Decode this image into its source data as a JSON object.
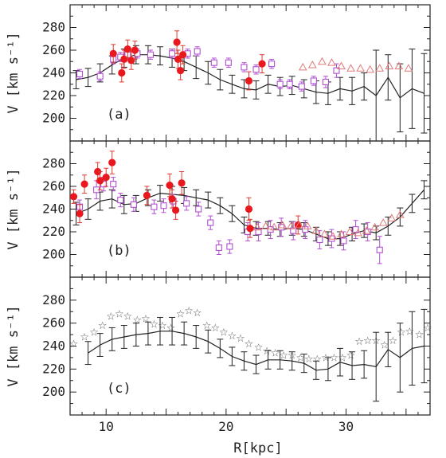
{
  "chart_data": [
    {
      "type": "scatter",
      "panel_label": "(a)",
      "ylabel": "V [km s⁻¹]",
      "xlim": [
        7,
        37
      ],
      "ylim": [
        180,
        300
      ],
      "yticks": [
        200,
        220,
        240,
        260,
        280
      ],
      "series": [
        {
          "marker": "line-with-errorbars",
          "color": "#222222",
          "x": [
            7.5,
            8.5,
            9.5,
            10.5,
            11.5,
            12.5,
            13.5,
            14.5,
            15.5,
            16.5,
            17.5,
            18.5,
            19.5,
            20.5,
            21.5,
            22.5,
            23.5,
            24.5,
            25.5,
            26.5,
            27.5,
            28.5,
            29.5,
            30.5,
            31.5,
            32.5,
            33.5,
            34.5,
            35.5,
            36.5
          ],
          "y": [
            234,
            236,
            240,
            247,
            253,
            256,
            256,
            255,
            253,
            250,
            245,
            240,
            234,
            230,
            226,
            225,
            230,
            228,
            229,
            226,
            223,
            222,
            226,
            224,
            228,
            220,
            236,
            218,
            226,
            222
          ],
          "err": [
            8,
            8,
            8,
            8,
            8,
            8,
            8,
            8,
            8,
            8,
            10,
            10,
            9,
            8,
            8,
            8,
            8,
            8,
            8,
            8,
            10,
            10,
            10,
            12,
            12,
            40,
            20,
            30,
            35,
            35
          ]
        },
        {
          "marker": "open-square",
          "color": "#b04fd0",
          "x": [
            7.8,
            9.5,
            10.6,
            11.2,
            11.8,
            12.6,
            13.7,
            15.5,
            16.8,
            17.6,
            19.0,
            20.2,
            21.5,
            22.5,
            23.8,
            24.5,
            25.3,
            26.3,
            27.3,
            28.3,
            29.2
          ],
          "y": [
            239,
            237,
            252,
            254,
            256,
            257,
            256,
            257,
            257,
            259,
            249,
            249,
            245,
            243,
            248,
            230,
            230,
            228,
            233,
            232,
            242
          ],
          "err": [
            4,
            4,
            4,
            4,
            4,
            4,
            4,
            4,
            4,
            4,
            4,
            4,
            4,
            4,
            4,
            4,
            4,
            4,
            4,
            5,
            6
          ]
        },
        {
          "marker": "filled-circle",
          "color": "#e8181e",
          "x": [
            10.6,
            11.3,
            11.5,
            11.8,
            12.1,
            12.4,
            15.9,
            16.0,
            16.2,
            16.4,
            21.9,
            23.0
          ],
          "y": [
            257,
            240,
            252,
            261,
            251,
            260,
            267,
            252,
            242,
            256,
            233,
            248
          ],
          "err": [
            8,
            8,
            8,
            8,
            8,
            8,
            10,
            8,
            8,
            8,
            8,
            8
          ]
        },
        {
          "marker": "open-triangle",
          "color": "#e07a7a",
          "x": [
            26.4,
            27.2,
            28.0,
            28.8,
            29.6,
            30.4,
            31.2,
            32.0,
            32.8,
            33.6,
            34.4,
            35.2
          ],
          "y": [
            245,
            247,
            250,
            249,
            246,
            244,
            244,
            243,
            244,
            246,
            246,
            244
          ]
        }
      ]
    },
    {
      "type": "scatter",
      "panel_label": "(b)",
      "ylabel": "V [km s⁻¹]",
      "xlim": [
        7,
        37
      ],
      "ylim": [
        180,
        300
      ],
      "yticks": [
        200,
        220,
        240,
        260,
        280
      ],
      "series": [
        {
          "marker": "line-with-errorbars",
          "color": "#222222",
          "x": [
            7.5,
            8.5,
            9.5,
            10.5,
            11.5,
            12.5,
            13.5,
            14.5,
            15.5,
            16.5,
            17.5,
            18.5,
            19.5,
            20.5,
            21.5,
            22.5,
            23.5,
            24.5,
            25.5,
            26.5,
            27.5,
            28.5,
            29.5,
            30.5,
            31.5,
            32.5,
            33.5,
            34.5,
            35.5,
            36.5
          ],
          "y": [
            236,
            240,
            247,
            249,
            244,
            245,
            250,
            254,
            253,
            252,
            250,
            248,
            243,
            236,
            226,
            223,
            223,
            222,
            223,
            222,
            218,
            214,
            214,
            218,
            221,
            219,
            225,
            233,
            245,
            257
          ],
          "err": [
            10,
            9,
            8,
            8,
            8,
            7,
            7,
            7,
            7,
            7,
            7,
            7,
            7,
            7,
            7,
            6,
            6,
            6,
            6,
            6,
            6,
            6,
            6,
            6,
            6,
            6,
            8,
            8,
            8,
            8
          ]
        },
        {
          "marker": "open-square",
          "color": "#b04fd0",
          "x": [
            7.8,
            9.2,
            9.8,
            10.6,
            11.2,
            12.3,
            14.0,
            14.8,
            15.6,
            16.7,
            17.7,
            18.7,
            19.4,
            20.3,
            21.8,
            22.7,
            23.7,
            24.6,
            25.6,
            26.6,
            27.8,
            28.8,
            29.8,
            30.8,
            31.8,
            32.8
          ],
          "y": [
            242,
            257,
            262,
            262,
            248,
            244,
            242,
            243,
            247,
            245,
            240,
            228,
            206,
            207,
            220,
            220,
            222,
            224,
            221,
            222,
            213,
            214,
            212,
            222,
            220,
            204
          ],
          "err": [
            6,
            8,
            6,
            6,
            6,
            6,
            6,
            6,
            6,
            6,
            6,
            6,
            6,
            6,
            8,
            8,
            8,
            8,
            8,
            8,
            8,
            8,
            8,
            8,
            8,
            12
          ]
        },
        {
          "marker": "filled-circle",
          "color": "#e8181e",
          "x": [
            7.3,
            7.8,
            8.2,
            9.3,
            9.5,
            10.0,
            10.5,
            13.4,
            15.3,
            15.5,
            15.8,
            16.3,
            21.9,
            22.0,
            26.0
          ],
          "y": [
            251,
            236,
            262,
            273,
            265,
            268,
            281,
            252,
            261,
            249,
            239,
            263,
            240,
            223,
            226
          ],
          "err": [
            6,
            8,
            8,
            8,
            8,
            8,
            10,
            8,
            10,
            8,
            8,
            10,
            10,
            8,
            8
          ]
        },
        {
          "marker": "open-triangle",
          "color": "#e07a7a",
          "x": [
            22.6,
            23.3,
            24.0,
            24.7,
            25.4,
            26.1,
            26.8,
            27.5,
            28.2,
            28.9,
            29.6,
            30.3,
            31.0,
            31.7,
            32.4,
            33.1,
            33.8,
            34.5
          ],
          "y": [
            224,
            225,
            224,
            226,
            225,
            226,
            225,
            221,
            218,
            216,
            218,
            220,
            219,
            221,
            224,
            228,
            232,
            235
          ]
        }
      ]
    },
    {
      "type": "scatter",
      "panel_label": "(c)",
      "ylabel": "V [km s⁻¹]",
      "xlabel": "R[kpc]",
      "xlim": [
        7,
        37
      ],
      "ylim": [
        180,
        300
      ],
      "yticks": [
        200,
        220,
        240,
        260,
        280
      ],
      "xticks": [
        10,
        20,
        30
      ],
      "series": [
        {
          "marker": "line-with-errorbars",
          "color": "#222222",
          "x": [
            8.5,
            9.5,
            10.5,
            11.5,
            12.5,
            13.5,
            14.5,
            15.5,
            16.5,
            17.5,
            18.5,
            19.5,
            20.5,
            21.5,
            22.5,
            23.5,
            24.5,
            25.5,
            26.5,
            27.5,
            28.5,
            29.5,
            30.5,
            31.5,
            32.5,
            33.5,
            34.5,
            35.5,
            36.5
          ],
          "y": [
            234,
            241,
            246,
            248,
            250,
            251,
            253,
            253,
            251,
            248,
            244,
            238,
            231,
            227,
            224,
            228,
            228,
            227,
            225,
            219,
            220,
            226,
            223,
            224,
            222,
            237,
            230,
            238,
            240
          ],
          "err": [
            10,
            10,
            10,
            10,
            10,
            10,
            12,
            12,
            10,
            10,
            10,
            8,
            8,
            8,
            8,
            8,
            8,
            8,
            8,
            8,
            10,
            12,
            12,
            12,
            30,
            15,
            30,
            32,
            32
          ]
        },
        {
          "marker": "star",
          "color": "#555555",
          "x": [
            7.3,
            8.2,
            9.0,
            9.7,
            10.4,
            11.1,
            11.8,
            12.6,
            13.3,
            14.0,
            14.7,
            15.4,
            16.2,
            16.9,
            17.6,
            18.4,
            19.1,
            19.8,
            20.5,
            21.2,
            21.9,
            22.7,
            23.4,
            24.1,
            24.8,
            25.5,
            26.2,
            26.9,
            27.6,
            28.3,
            29.0,
            29.7,
            30.4,
            31.1,
            31.8,
            32.5,
            33.2,
            33.9,
            34.6,
            35.3,
            36.1,
            36.8
          ],
          "y": [
            242,
            248,
            252,
            258,
            266,
            268,
            266,
            263,
            264,
            259,
            258,
            256,
            268,
            271,
            269,
            258,
            256,
            252,
            249,
            247,
            242,
            239,
            236,
            234,
            232,
            232,
            230,
            229,
            229,
            230,
            230,
            230,
            232,
            244,
            245,
            245,
            241,
            245,
            252,
            253,
            250,
            256
          ]
        }
      ]
    }
  ]
}
